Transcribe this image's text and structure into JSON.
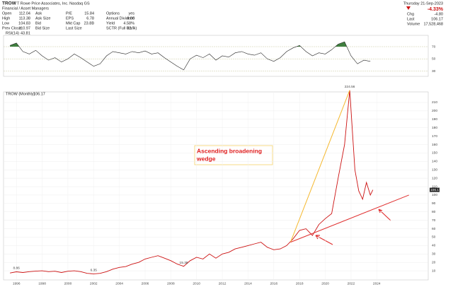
{
  "header": {
    "symbol": "TROW",
    "company": "T Rowe Price Associates, Inc.  Nasdaq GS",
    "sector": "Financial / Asset Managers",
    "quote": [
      [
        [
          "Open",
          "112.04"
        ],
        [
          "Ask"
        ],
        [
          "P/E",
          "15.84"
        ],
        [
          "Options",
          "yes"
        ]
      ],
      [
        [
          "High",
          "113.38"
        ],
        [
          "Ask Size"
        ],
        [
          "EPS",
          "6.78"
        ],
        [
          "Annual Dividend",
          "4.86"
        ]
      ],
      [
        [
          "Low",
          "104.83"
        ],
        [
          "Bid"
        ],
        [
          "Mkt Cap",
          "23.8B"
        ],
        [
          "Yield",
          "4.58%"
        ]
      ],
      [
        [
          "Prev Close",
          "110.97"
        ],
        [
          "Bid Size"
        ],
        [
          "Last Size"
        ],
        [
          "SCTR (Full Rank)",
          "32.7"
        ]
      ]
    ],
    "date": "Thursday 21-Sep-2023",
    "change_pct": "-4.33%",
    "stats": [
      [
        "Chg",
        "-4.80"
      ],
      [
        "Last",
        "106.17"
      ],
      [
        "Volume",
        "17,528,468"
      ]
    ]
  },
  "chart_data": [
    {
      "type": "line",
      "xlim": [
        1995,
        2028
      ],
      "ylim": [
        25,
        85
      ],
      "yticks": [
        30,
        50,
        70
      ],
      "overbought": 70,
      "fill_color": "#3f7f3f",
      "x": [
        1995.5,
        1996,
        1996.5,
        1997,
        1997.5,
        1998,
        1998.5,
        1999,
        1999.5,
        2000,
        2000.5,
        2001,
        2001.5,
        2002,
        2002.5,
        2003,
        2003.5,
        2004,
        2004.5,
        2005,
        2005.5,
        2006,
        2006.5,
        2007,
        2007.5,
        2008,
        2008.5,
        2009,
        2009.5,
        2010,
        2010.5,
        2011,
        2011.5,
        2012,
        2012.5,
        2013,
        2013.5,
        2014,
        2014.5,
        2015,
        2015.5,
        2016,
        2016.5,
        2017,
        2017.5,
        2018,
        2018.5,
        2019,
        2019.5,
        2020,
        2020.5,
        2021,
        2021.5,
        2022,
        2022.5,
        2023,
        2023.5
      ],
      "series": [
        {
          "name": "RSI(14)",
          "last": 43.81,
          "color": "#222222",
          "values": [
            72,
            76,
            62,
            58,
            64,
            55,
            48,
            52,
            45,
            50,
            58,
            52,
            45,
            38,
            42,
            55,
            62,
            60,
            58,
            62,
            60,
            63,
            58,
            60,
            52,
            45,
            38,
            32,
            50,
            56,
            52,
            58,
            48,
            55,
            53,
            60,
            62,
            58,
            56,
            60,
            50,
            46,
            52,
            62,
            68,
            72,
            62,
            55,
            60,
            58,
            65,
            74,
            78,
            55,
            42,
            48,
            46
          ]
        }
      ]
    },
    {
      "type": "line",
      "xlim": [
        1995,
        2028
      ],
      "ylim": [
        0,
        215
      ],
      "yticks": [
        10,
        20,
        30,
        40,
        50,
        60,
        70,
        80,
        90,
        100,
        110,
        120,
        130,
        140,
        150,
        160,
        170,
        180,
        190,
        200,
        210
      ],
      "xticks": [
        1996,
        1998,
        2000,
        2002,
        2004,
        2006,
        2008,
        2010,
        2012,
        2014,
        2016,
        2018,
        2020,
        2022,
        2024
      ],
      "x": [
        1995.5,
        1996,
        1996.5,
        1997,
        1997.5,
        1998,
        1998.5,
        1999,
        1999.5,
        2000,
        2000.5,
        2001,
        2001.5,
        2002,
        2002.5,
        2003,
        2003.5,
        2004,
        2004.5,
        2005,
        2005.5,
        2006,
        2006.5,
        2007,
        2007.5,
        2008,
        2008.5,
        2009,
        2009.5,
        2010,
        2010.5,
        2011,
        2011.5,
        2012,
        2012.5,
        2013,
        2013.5,
        2014,
        2014.5,
        2015,
        2015.5,
        2016,
        2016.5,
        2017,
        2017.5,
        2018,
        2018.5,
        2019,
        2019.5,
        2020,
        2020.5,
        2021,
        2021.5,
        2021.9,
        2022.3,
        2022.6,
        2022.9,
        2023.2,
        2023.5,
        2023.7
      ],
      "series": [
        {
          "name": "TROW (Monthly)",
          "last": 106.17,
          "color": "#cc1111",
          "values": [
            7.4,
            8.86,
            8,
            9,
            9.6,
            10,
            9,
            9.5,
            8,
            9.5,
            10,
            9,
            7,
            6.35,
            7,
            9,
            12,
            14,
            15,
            18,
            20,
            24,
            26,
            28,
            25,
            22,
            18,
            15.38,
            22,
            26,
            24,
            30,
            25,
            30,
            32,
            36,
            38,
            40,
            42,
            44,
            38,
            35,
            36,
            40,
            48,
            58,
            60,
            52,
            65,
            72,
            78,
            120,
            160,
            224.56,
            130,
            105,
            95,
            115,
            100,
            106.17
          ]
        }
      ],
      "point_labels": [
        {
          "text": "8.86",
          "x": 1996,
          "value": 8.86
        },
        {
          "text": "6.35",
          "x": 2002,
          "value": 6.35
        },
        {
          "text": "15.38",
          "x": 2009,
          "value": 15.38
        },
        {
          "text": "224.56",
          "x": 2021.9,
          "value": 224.56
        }
      ],
      "trendlines": [
        {
          "from": [
            2017.3,
            44
          ],
          "to": [
            2021.9,
            224.56
          ],
          "color": "#f5b82e"
        },
        {
          "from": [
            2017.3,
            44
          ],
          "to": [
            2026.5,
            100
          ],
          "color": "#e03030"
        }
      ],
      "annotation": [
        "Ascending broadening",
        "wedge"
      ]
    }
  ]
}
